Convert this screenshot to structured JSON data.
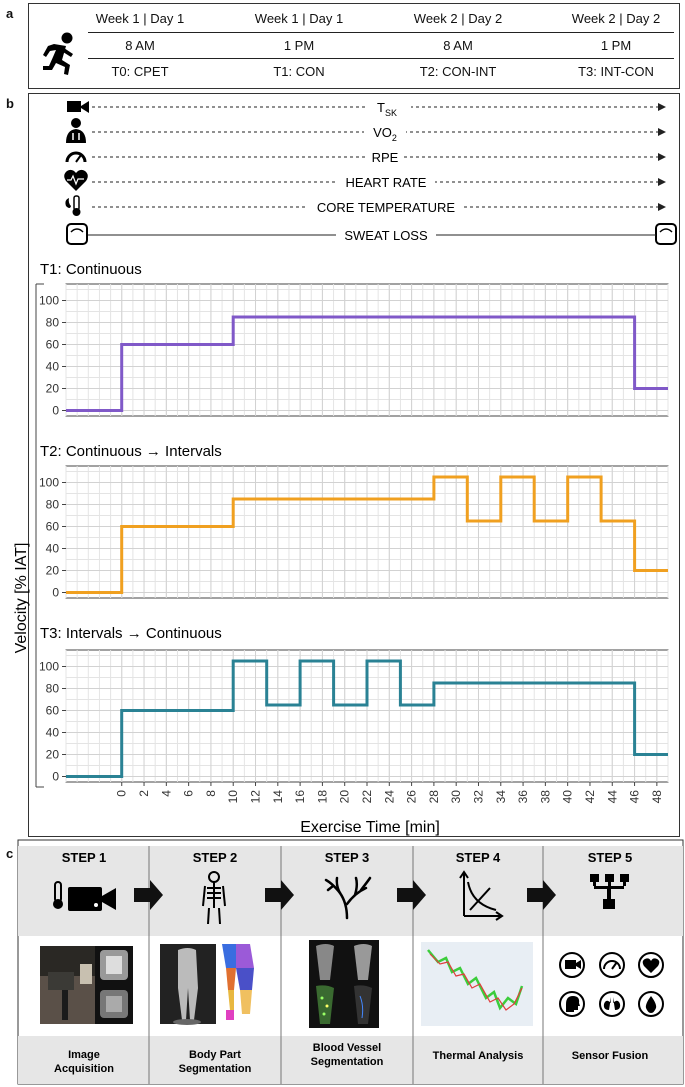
{
  "panel_a": {
    "letter": "a",
    "columns": [
      {
        "day": "Week 1 | Day 1",
        "time": "8 AM",
        "trial": "T0: CPET"
      },
      {
        "day": "Week 1 | Day 1",
        "time": "1 PM",
        "trial": "T1: CON"
      },
      {
        "day": "Week 2 | Day 2",
        "time": "8 AM",
        "trial": "T2: CON-INT"
      },
      {
        "day": "Week 2 | Day 2",
        "time": "1 PM",
        "trial": "T3: INT-CON"
      }
    ]
  },
  "panel_b": {
    "letter": "b",
    "measurements": [
      {
        "label": "T",
        "sub": "SK",
        "icon": "camera-icon",
        "style": "dashed"
      },
      {
        "label": "VO",
        "sub": "2",
        "icon": "lungs-person-icon",
        "style": "dashed"
      },
      {
        "label": "RPE",
        "sub": "",
        "icon": "gauge-icon",
        "style": "dashed"
      },
      {
        "label": "HEART RATE",
        "sub": "",
        "icon": "heart-icon",
        "style": "dashed"
      },
      {
        "label": "CORE TEMPERATURE",
        "sub": "",
        "icon": "thermometer-icon",
        "style": "dashed"
      },
      {
        "label": "SWEAT LOSS",
        "sub": "",
        "icon": "scale-icon",
        "style": "solid"
      }
    ],
    "ylabel": "Velocity [% IAT]",
    "xlabel": "Exercise Time [min]"
  },
  "chart_data": [
    {
      "type": "line",
      "title": "T1: Continuous",
      "color": "#8059c8",
      "x": [
        -5,
        0,
        0,
        10,
        10,
        46,
        46,
        49
      ],
      "y": [
        0,
        0,
        60,
        60,
        85,
        85,
        20,
        20
      ],
      "xlim": [
        -5,
        49
      ],
      "ylim": [
        -5,
        115
      ],
      "yticks": [
        0,
        20,
        40,
        60,
        80,
        100
      ],
      "xticks": [
        0,
        2,
        4,
        6,
        8,
        10,
        12,
        14,
        16,
        18,
        20,
        22,
        24,
        26,
        28,
        30,
        32,
        34,
        36,
        38,
        40,
        42,
        44,
        46,
        48
      ],
      "xlabel": "Exercise Time [min]",
      "ylabel": "Velocity [% IAT]"
    },
    {
      "type": "line",
      "title": "T2: Continuous → Intervals",
      "color": "#f0a020",
      "x": [
        -5,
        0,
        0,
        10,
        10,
        28,
        28,
        31,
        31,
        34,
        34,
        37,
        37,
        40,
        40,
        43,
        43,
        46,
        46,
        49
      ],
      "y": [
        0,
        0,
        60,
        60,
        85,
        85,
        105,
        105,
        65,
        65,
        105,
        105,
        65,
        65,
        105,
        105,
        65,
        65,
        20,
        20
      ],
      "xlim": [
        -5,
        49
      ],
      "ylim": [
        -5,
        115
      ],
      "yticks": [
        0,
        20,
        40,
        60,
        80,
        100
      ],
      "xticks": [
        0,
        2,
        4,
        6,
        8,
        10,
        12,
        14,
        16,
        18,
        20,
        22,
        24,
        26,
        28,
        30,
        32,
        34,
        36,
        38,
        40,
        42,
        44,
        46,
        48
      ],
      "xlabel": "Exercise Time [min]",
      "ylabel": "Velocity [% IAT]"
    },
    {
      "type": "line",
      "title": "T3: Intervals → Continuous",
      "color": "#2a8294",
      "x": [
        -5,
        0,
        0,
        10,
        10,
        13,
        13,
        16,
        16,
        19,
        19,
        22,
        22,
        25,
        25,
        28,
        28,
        46,
        46,
        49
      ],
      "y": [
        0,
        0,
        60,
        60,
        105,
        105,
        65,
        65,
        105,
        105,
        65,
        65,
        105,
        105,
        65,
        65,
        85,
        85,
        20,
        20
      ],
      "xlim": [
        -5,
        49
      ],
      "ylim": [
        -5,
        115
      ],
      "yticks": [
        0,
        20,
        40,
        60,
        80,
        100
      ],
      "xticks": [
        0,
        2,
        4,
        6,
        8,
        10,
        12,
        14,
        16,
        18,
        20,
        22,
        24,
        26,
        28,
        30,
        32,
        34,
        36,
        38,
        40,
        42,
        44,
        46,
        48
      ],
      "xlabel": "Exercise Time [min]",
      "ylabel": "Velocity [% IAT]"
    }
  ],
  "panel_c": {
    "letter": "c",
    "steps": [
      {
        "step": "STEP 1",
        "label": "Image\nAcquisition",
        "icon": "thermometer-camera-icon"
      },
      {
        "step": "STEP 2",
        "label": "Body Part\nSegmentation",
        "icon": "skeleton-icon"
      },
      {
        "step": "STEP 3",
        "label": "Blood Vessel\nSegmentation",
        "icon": "vessel-tree-icon"
      },
      {
        "step": "STEP 4",
        "label": "Thermal Analysis",
        "icon": "curve-chart-icon"
      },
      {
        "step": "STEP 5",
        "label": "Sensor Fusion",
        "icon": "hierarchy-icon"
      }
    ]
  }
}
